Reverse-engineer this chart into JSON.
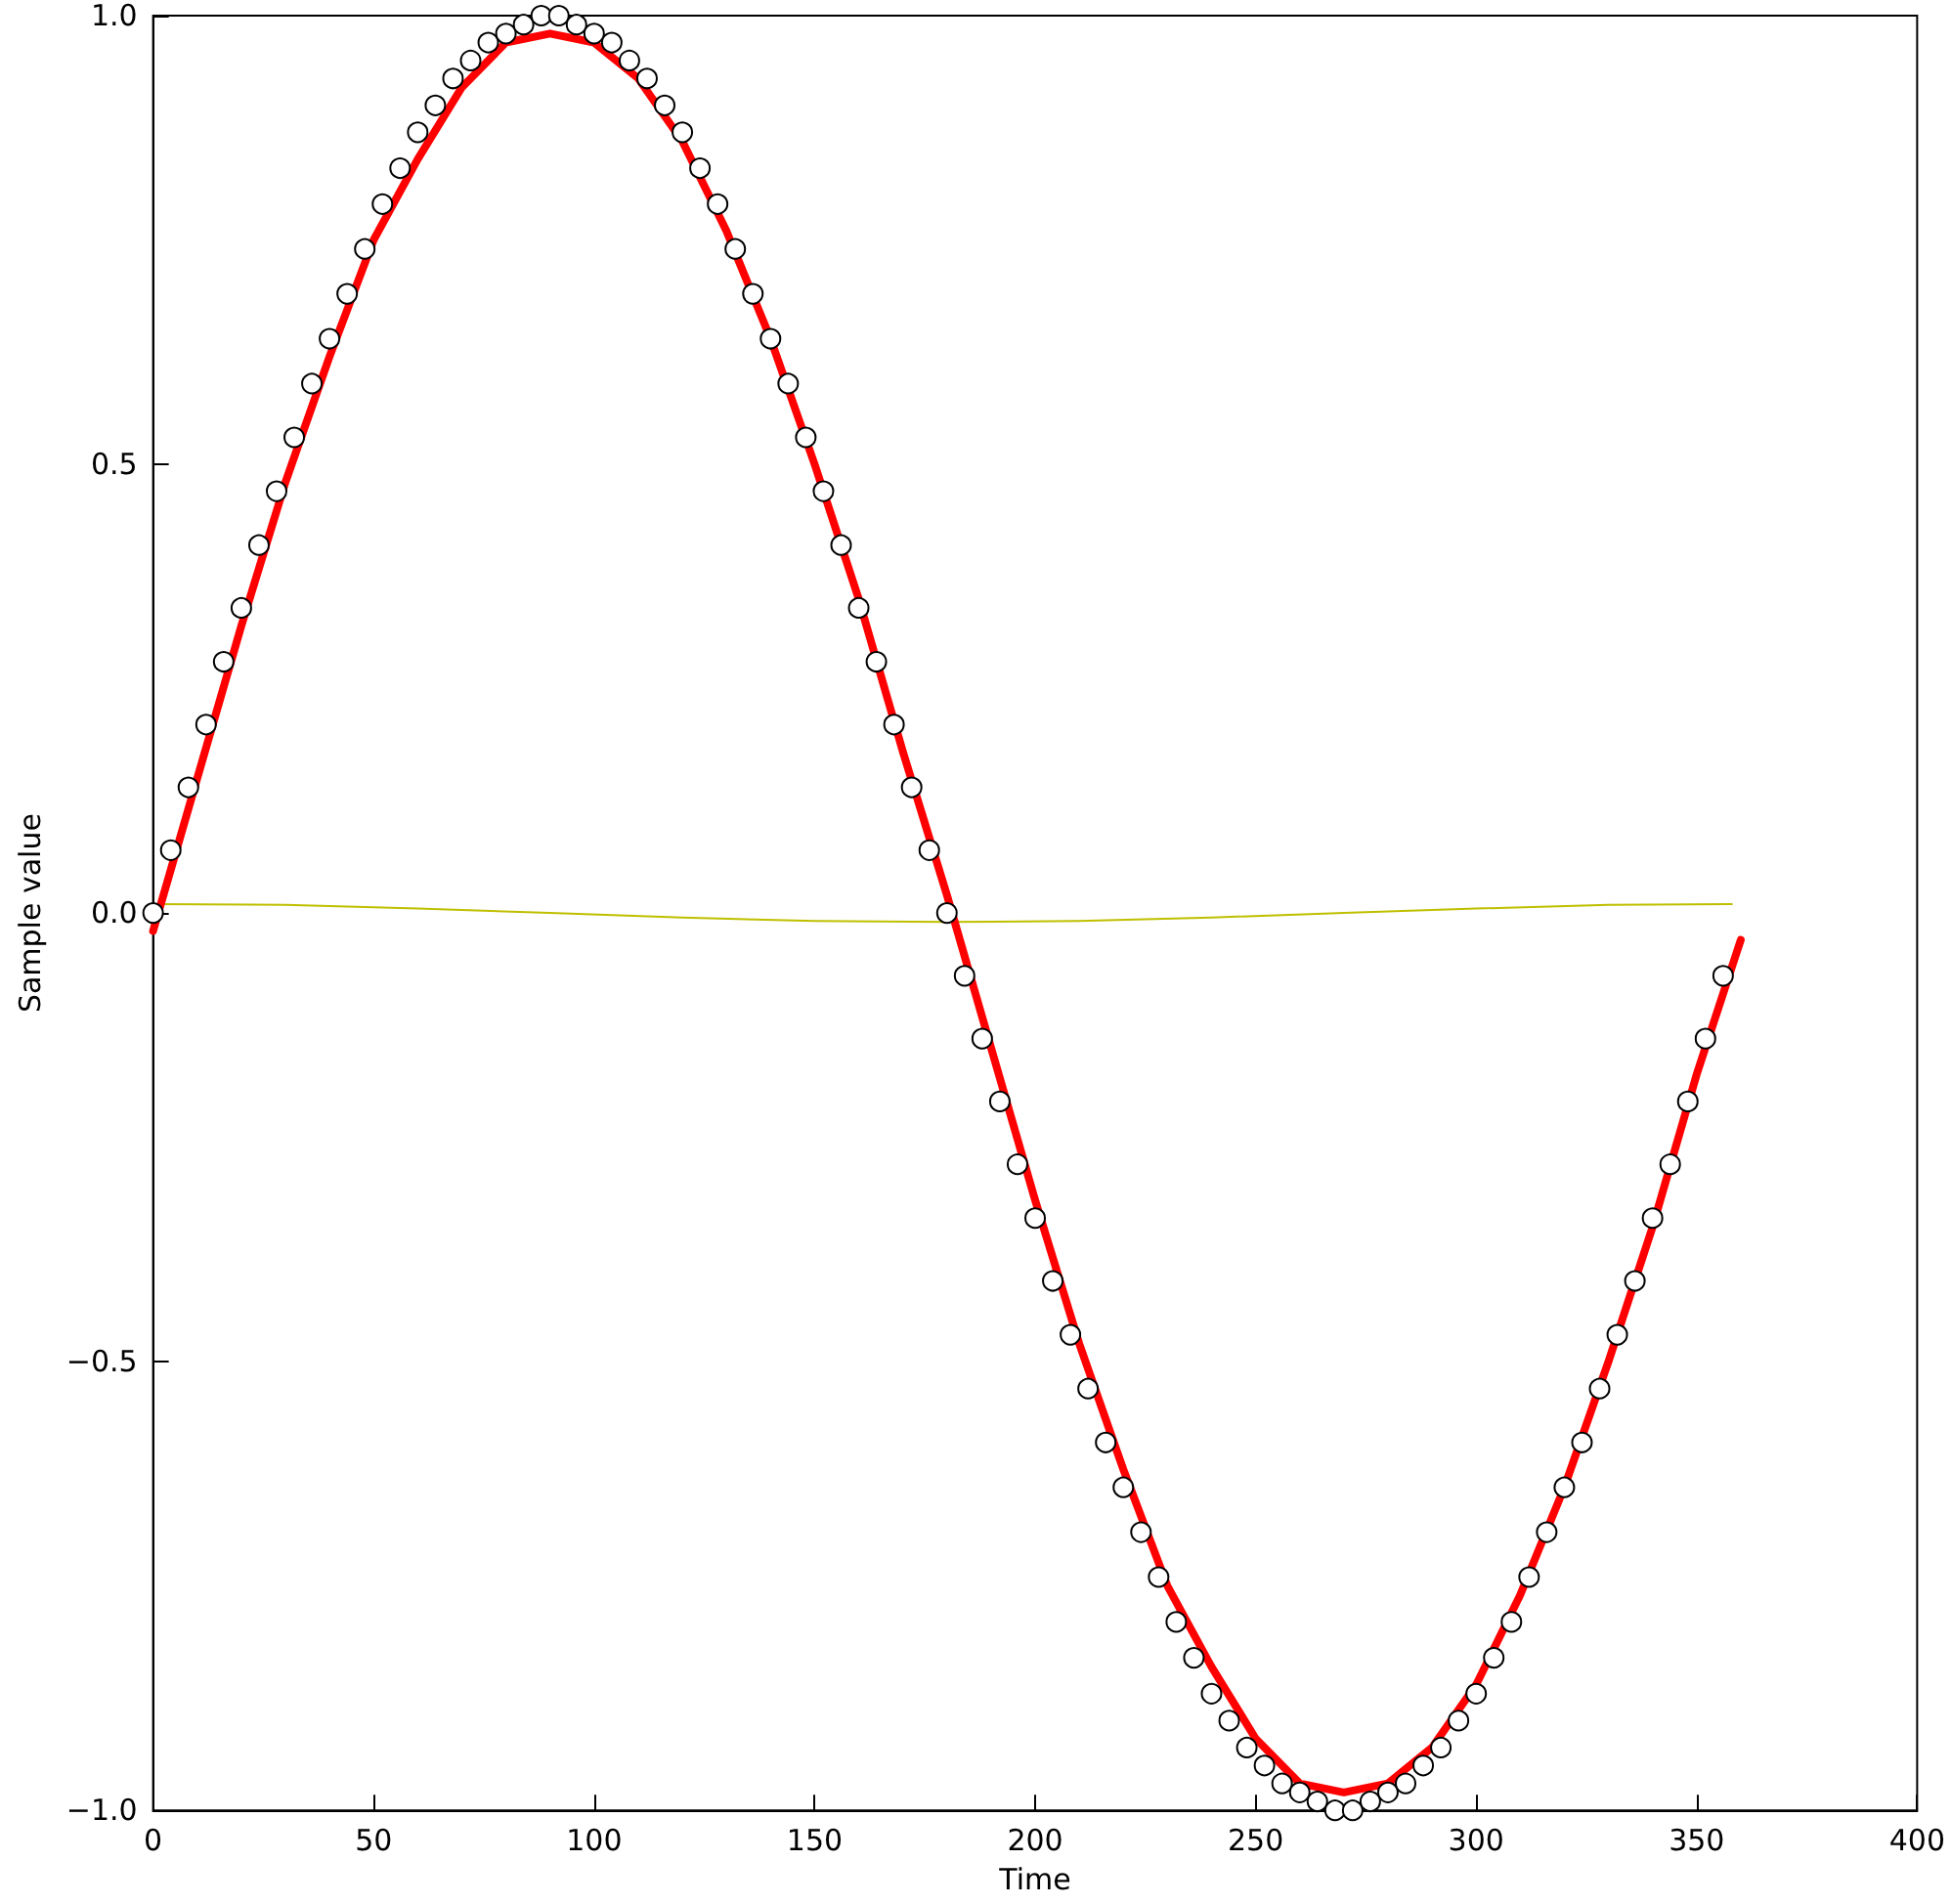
{
  "chart_data": {
    "type": "line",
    "xlabel": "Time",
    "ylabel": "Sample value",
    "xlim": [
      0,
      400
    ],
    "xticks": [
      0,
      50,
      100,
      150,
      200,
      250,
      300,
      350,
      400
    ],
    "ylim": [
      -1,
      1
    ],
    "yticks": [
      {
        "value": -1,
        "label": "−1.0"
      },
      {
        "value": -0.5,
        "label": "−0.5"
      },
      {
        "value": 0,
        "label": "0.0"
      },
      {
        "value": 0.5,
        "label": "0.5"
      },
      {
        "value": 1,
        "label": "1.0"
      }
    ],
    "grid": false,
    "series": [
      {
        "color": "#bfbf00",
        "marker": "none",
        "x": [
          0,
          30,
          60,
          90,
          120,
          150,
          180,
          210,
          240,
          270,
          300,
          330,
          358
        ],
        "values": [
          0.01,
          0.009,
          0.005,
          0,
          -0.005,
          -0.009,
          -0.01,
          -0.009,
          -0.005,
          0,
          0.005,
          0.009,
          0.01
        ]
      },
      {
        "color": "#ff0000",
        "marker": "none",
        "x": [
          0,
          10,
          20,
          30,
          40,
          50,
          60,
          70,
          80,
          90,
          100,
          110,
          120,
          130,
          140,
          150,
          160,
          170,
          180,
          190,
          200,
          210,
          220,
          230,
          240,
          250,
          260,
          270,
          280,
          290,
          300,
          310,
          320,
          330,
          340,
          350,
          360
        ],
        "values": [
          -0.02,
          0.15,
          0.32,
          0.48,
          0.62,
          0.75,
          0.84,
          0.92,
          0.97,
          0.98,
          0.97,
          0.93,
          0.86,
          0.76,
          0.64,
          0.5,
          0.35,
          0.18,
          0.02,
          -0.15,
          -0.32,
          -0.48,
          -0.62,
          -0.75,
          -0.84,
          -0.92,
          -0.97,
          -0.98,
          -0.97,
          -0.93,
          -0.86,
          -0.76,
          -0.64,
          -0.5,
          -0.35,
          -0.18,
          -0.03
        ]
      },
      {
        "type": "scatter",
        "color": "#ffffff",
        "marker": "circle",
        "x": [
          0,
          4,
          8,
          12,
          16,
          20,
          24,
          28,
          32,
          36,
          40,
          44,
          48,
          52,
          56,
          60,
          64,
          68,
          72,
          76,
          80,
          84,
          88,
          92,
          96,
          100,
          104,
          108,
          112,
          116,
          120,
          124,
          128,
          132,
          136,
          140,
          144,
          148,
          152,
          156,
          160,
          164,
          168,
          172,
          176,
          180,
          184,
          188,
          192,
          196,
          200,
          204,
          208,
          212,
          216,
          220,
          224,
          228,
          232,
          236,
          240,
          244,
          248,
          252,
          256,
          260,
          264,
          268,
          272,
          276,
          280,
          284,
          288,
          292,
          296,
          300,
          304,
          308,
          312,
          316,
          320,
          324,
          328,
          332,
          336,
          340,
          344,
          348,
          352,
          356
        ],
        "values": [
          0,
          0.07,
          0.14,
          0.21,
          0.28,
          0.34,
          0.41,
          0.47,
          0.53,
          0.59,
          0.64,
          0.69,
          0.74,
          0.79,
          0.83,
          0.87,
          0.9,
          0.93,
          0.95,
          0.97,
          0.98,
          0.99,
          1,
          1,
          0.99,
          0.98,
          0.97,
          0.95,
          0.93,
          0.9,
          0.87,
          0.83,
          0.79,
          0.74,
          0.69,
          0.64,
          0.59,
          0.53,
          0.47,
          0.41,
          0.34,
          0.28,
          0.21,
          0.14,
          0.07,
          0,
          -0.07,
          -0.14,
          -0.21,
          -0.28,
          -0.34,
          -0.41,
          -0.47,
          -0.53,
          -0.59,
          -0.64,
          -0.69,
          -0.74,
          -0.79,
          -0.83,
          -0.87,
          -0.9,
          -0.93,
          -0.95,
          -0.97,
          -0.98,
          -0.99,
          -1,
          -1,
          -0.99,
          -0.98,
          -0.97,
          -0.95,
          -0.93,
          -0.9,
          -0.87,
          -0.83,
          -0.79,
          -0.74,
          -0.69,
          -0.64,
          -0.59,
          -0.53,
          -0.47,
          -0.41,
          -0.34,
          -0.28,
          -0.21,
          -0.14,
          -0.07
        ]
      }
    ]
  }
}
